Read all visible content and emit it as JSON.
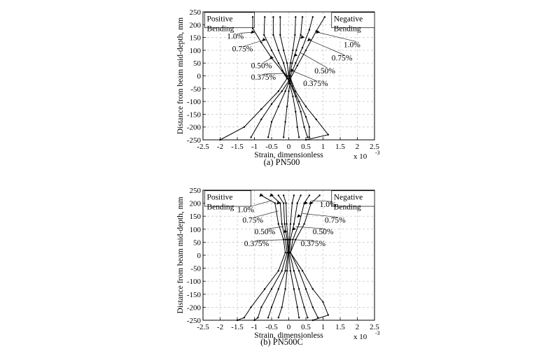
{
  "figure": {
    "captions": [
      "(a)  PN500",
      "(b)  PN500C"
    ]
  },
  "chart_data": [
    {
      "type": "line",
      "panel": "a",
      "caption": "(a)  PN500",
      "xlabel": "Strain, dimensionless",
      "ylabel": "Distance from beam mid-depth, mm",
      "x_multiplier": "x 10",
      "x_exponent": "-3",
      "xlim": [
        -2.5,
        2.5
      ],
      "ylim": [
        -250,
        250
      ],
      "xticks": [
        -2.5,
        -2,
        -1.5,
        -1,
        -0.5,
        0,
        0.5,
        1,
        1.5,
        2,
        2.5
      ],
      "xtick_labels": [
        "-2.5",
        "-2",
        "-1.5",
        "-1",
        "-0.5",
        "0",
        "0.5",
        "1",
        "1.5",
        "2",
        "2.5"
      ],
      "yticks": [
        -250,
        -200,
        -150,
        -100,
        -50,
        0,
        50,
        100,
        150,
        200,
        250
      ],
      "ytick_labels": [
        "-250",
        "-200",
        "-150",
        "-100",
        "-50",
        "0",
        "50",
        "100",
        "150",
        "200",
        "250"
      ],
      "grid": true,
      "legend_boxes": [
        {
          "lines": [
            "Positive",
            "Bending"
          ],
          "x": -2.45,
          "y": 248,
          "w": 1.45,
          "h": 60
        },
        {
          "lines": [
            "Negative",
            "Bending"
          ],
          "x": 1.25,
          "y": 248,
          "w": 1.25,
          "h": 60
        }
      ],
      "series": [
        {
          "label": "P-1.0%",
          "points": [
            [
              -1.05,
              230
            ],
            [
              -1.05,
              185
            ],
            [
              -0.8,
              130
            ],
            [
              -0.5,
              70
            ],
            [
              -0.2,
              20
            ],
            [
              -0.05,
              -10
            ],
            [
              -0.3,
              -60
            ],
            [
              -0.8,
              -130
            ],
            [
              -1.3,
              -200
            ],
            [
              -2.0,
              -250
            ]
          ]
        },
        {
          "label": "P-0.75%",
          "points": [
            [
              -0.7,
              230
            ],
            [
              -0.72,
              160
            ],
            [
              -0.5,
              100
            ],
            [
              -0.3,
              50
            ],
            [
              -0.1,
              5
            ],
            [
              0,
              -20
            ],
            [
              -0.2,
              -60
            ],
            [
              -0.5,
              -110
            ],
            [
              -0.8,
              -170
            ],
            [
              -1.1,
              -240
            ]
          ]
        },
        {
          "label": "P-0.50%",
          "points": [
            [
              -0.45,
              230
            ],
            [
              -0.45,
              160
            ],
            [
              -0.3,
              100
            ],
            [
              -0.15,
              50
            ],
            [
              -0.05,
              0
            ],
            [
              0.02,
              -20
            ],
            [
              -0.1,
              -60
            ],
            [
              -0.3,
              -120
            ],
            [
              -0.5,
              -180
            ],
            [
              -0.6,
              -240
            ]
          ]
        },
        {
          "label": "P-0.375%",
          "points": [
            [
              -0.25,
              230
            ],
            [
              -0.25,
              160
            ],
            [
              -0.15,
              100
            ],
            [
              -0.05,
              50
            ],
            [
              0,
              0
            ],
            [
              0.05,
              -20
            ],
            [
              0,
              -60
            ],
            [
              -0.05,
              -120
            ],
            [
              -0.1,
              -180
            ],
            [
              -0.15,
              -240
            ]
          ]
        },
        {
          "label": "N-0.375%",
          "points": [
            [
              0.2,
              230
            ],
            [
              0.18,
              160
            ],
            [
              0.12,
              100
            ],
            [
              0.05,
              50
            ],
            [
              0,
              0
            ],
            [
              0.02,
              -30
            ],
            [
              0.12,
              -80
            ],
            [
              0.2,
              -140
            ],
            [
              0.25,
              -200
            ],
            [
              0.3,
              -240
            ]
          ]
        },
        {
          "label": "N-0.50%",
          "points": [
            [
              0.4,
              230
            ],
            [
              0.35,
              160
            ],
            [
              0.22,
              100
            ],
            [
              0.1,
              50
            ],
            [
              0.02,
              0
            ],
            [
              0.05,
              -30
            ],
            [
              0.2,
              -80
            ],
            [
              0.35,
              -140
            ],
            [
              0.45,
              -200
            ],
            [
              0.55,
              -240
            ]
          ]
        },
        {
          "label": "N-0.75%",
          "points": [
            [
              0.7,
              230
            ],
            [
              0.6,
              180
            ],
            [
              0.4,
              110
            ],
            [
              0.2,
              50
            ],
            [
              0.05,
              0
            ],
            [
              0.1,
              -40
            ],
            [
              0.3,
              -100
            ],
            [
              0.5,
              -160
            ],
            [
              0.6,
              -200
            ],
            [
              0.6,
              -240
            ]
          ]
        },
        {
          "label": "N-1.0%",
          "points": [
            [
              1.05,
              230
            ],
            [
              0.8,
              175
            ],
            [
              0.5,
              100
            ],
            [
              0.25,
              40
            ],
            [
              0.05,
              -10
            ],
            [
              0.2,
              -60
            ],
            [
              0.5,
              -120
            ],
            [
              0.8,
              -170
            ],
            [
              1.15,
              -230
            ],
            [
              0.5,
              -250
            ]
          ]
        }
      ],
      "markers": [
        [
          -1.05,
          170
        ],
        [
          -0.72,
          140
        ],
        [
          -0.5,
          70
        ],
        [
          0.4,
          150
        ],
        [
          0.6,
          140
        ],
        [
          0.85,
          170
        ],
        [
          0.2,
          80
        ],
        [
          0.1,
          20
        ]
      ],
      "annotations": [
        {
          "text": "1.0%",
          "x": -1.8,
          "y": 145,
          "tx": -1.05,
          "ty": 170
        },
        {
          "text": "0.75%",
          "x": -1.65,
          "y": 95,
          "tx": -0.72,
          "ty": 140
        },
        {
          "text": "0.50%",
          "x": -1.1,
          "y": 30,
          "tx": -0.5,
          "ty": 70
        },
        {
          "text": "0.375%",
          "x": -1.1,
          "y": -15,
          "tx": -0.1,
          "ty": 10
        },
        {
          "text": "1.0%",
          "x": 1.6,
          "y": 112,
          "tx": 0.85,
          "ty": 170
        },
        {
          "text": "0.75%",
          "x": 1.25,
          "y": 60,
          "tx": 0.6,
          "ty": 140
        },
        {
          "text": "0.50%",
          "x": 0.75,
          "y": 10,
          "tx": 0.35,
          "ty": 90
        },
        {
          "text": "0.375%",
          "x": 0.42,
          "y": -40,
          "tx": 0.1,
          "ty": 20
        }
      ]
    },
    {
      "type": "line",
      "panel": "b",
      "caption": "(b)  PN500C",
      "xlabel": "Strain, dimensionless",
      "ylabel": "Distance from beam mid-depth, mm",
      "x_multiplier": "x 10",
      "x_exponent": "-3",
      "xlim": [
        -2.5,
        2.5
      ],
      "ylim": [
        -250,
        250
      ],
      "xticks": [
        -2.5,
        -2,
        -1.5,
        -1,
        -0.5,
        0,
        0.5,
        1,
        1.5,
        2,
        2.5
      ],
      "xtick_labels": [
        "-2.5",
        "-2",
        "-1.5",
        "-1",
        "-0.5",
        "0",
        "0.5",
        "1",
        "1.5",
        "2",
        "2.5"
      ],
      "yticks": [
        -250,
        -200,
        -150,
        -100,
        -50,
        0,
        50,
        100,
        150,
        200,
        250
      ],
      "ytick_labels": [
        "-250",
        "-200",
        "-150",
        "-100",
        "-50",
        "0",
        "50",
        "100",
        "150",
        "200",
        "250"
      ],
      "grid": true,
      "legend_boxes": [
        {
          "lines": [
            "Positive",
            "Bending"
          ],
          "x": -2.45,
          "y": 248,
          "w": 1.35,
          "h": 60
        },
        {
          "lines": [
            "Negative",
            "Bending"
          ],
          "x": 1.25,
          "y": 248,
          "w": 1.25,
          "h": 60
        }
      ],
      "series": [
        {
          "label": "P-1.0%",
          "points": [
            [
              -0.8,
              230
            ],
            [
              -0.4,
              200
            ],
            [
              -0.3,
              120
            ],
            [
              -0.15,
              60
            ],
            [
              -0.1,
              10
            ],
            [
              -0.3,
              -60
            ],
            [
              -0.7,
              -130
            ],
            [
              -1.1,
              -200
            ],
            [
              -1.3,
              -240
            ],
            [
              -1.5,
              -250
            ]
          ]
        },
        {
          "label": "P-0.75%",
          "points": [
            [
              -0.5,
              230
            ],
            [
              -0.25,
              200
            ],
            [
              -0.2,
              120
            ],
            [
              -0.1,
              60
            ],
            [
              -0.05,
              10
            ],
            [
              -0.2,
              -60
            ],
            [
              -0.5,
              -130
            ],
            [
              -0.8,
              -200
            ],
            [
              -0.9,
              -240
            ],
            [
              -1.0,
              -250
            ]
          ]
        },
        {
          "label": "P-0.50%",
          "points": [
            [
              -0.3,
              230
            ],
            [
              -0.15,
              200
            ],
            [
              -0.12,
              120
            ],
            [
              -0.05,
              60
            ],
            [
              -0.02,
              10
            ],
            [
              -0.1,
              -60
            ],
            [
              -0.3,
              -130
            ],
            [
              -0.5,
              -200
            ],
            [
              -0.6,
              -240
            ]
          ]
        },
        {
          "label": "P-0.375%",
          "points": [
            [
              -0.15,
              230
            ],
            [
              -0.08,
              200
            ],
            [
              -0.06,
              120
            ],
            [
              -0.02,
              60
            ],
            [
              0,
              10
            ],
            [
              -0.05,
              -60
            ],
            [
              -0.1,
              -130
            ],
            [
              -0.2,
              -200
            ],
            [
              -0.3,
              -240
            ]
          ]
        },
        {
          "label": "N-0.375%",
          "points": [
            [
              0.15,
              230
            ],
            [
              0.1,
              200
            ],
            [
              0.05,
              120
            ],
            [
              0.02,
              60
            ],
            [
              0,
              10
            ],
            [
              0.05,
              -60
            ],
            [
              0.15,
              -130
            ],
            [
              0.25,
              -200
            ],
            [
              0.3,
              -240
            ]
          ]
        },
        {
          "label": "N-0.50%",
          "points": [
            [
              0.35,
              230
            ],
            [
              0.25,
              200
            ],
            [
              0.15,
              120
            ],
            [
              0.05,
              60
            ],
            [
              0.02,
              10
            ],
            [
              0.15,
              -60
            ],
            [
              0.3,
              -130
            ],
            [
              0.45,
              -200
            ],
            [
              0.55,
              -240
            ]
          ]
        },
        {
          "label": "N-0.75%",
          "points": [
            [
              0.6,
              230
            ],
            [
              0.45,
              200
            ],
            [
              0.3,
              120
            ],
            [
              0.12,
              60
            ],
            [
              0.05,
              10
            ],
            [
              0.3,
              -60
            ],
            [
              0.5,
              -130
            ],
            [
              0.7,
              -200
            ],
            [
              0.85,
              -240
            ]
          ]
        },
        {
          "label": "N-1.0%",
          "points": [
            [
              0.9,
              230
            ],
            [
              0.65,
              200
            ],
            [
              0.45,
              120
            ],
            [
              0.2,
              60
            ],
            [
              0.05,
              10
            ],
            [
              0.4,
              -60
            ],
            [
              0.7,
              -130
            ],
            [
              1.0,
              -180
            ],
            [
              1.15,
              -230
            ],
            [
              0.7,
              -250
            ]
          ]
        }
      ],
      "markers": [
        [
          -0.8,
          230
        ],
        [
          -0.5,
          230
        ],
        [
          -0.3,
          200
        ],
        [
          0.5,
          200
        ],
        [
          0.65,
          200
        ],
        [
          0.3,
          150
        ],
        [
          0.15,
          100
        ],
        [
          -0.1,
          90
        ]
      ],
      "annotations": [
        {
          "text": "1.0%",
          "x": -1.5,
          "y": 165,
          "tx": -0.5,
          "ty": 210
        },
        {
          "text": "0.75%",
          "x": -1.35,
          "y": 125,
          "tx": -0.3,
          "ty": 170
        },
        {
          "text": "0.50%",
          "x": -1.0,
          "y": 80,
          "tx": -0.15,
          "ty": 110
        },
        {
          "text": "0.375%",
          "x": -1.3,
          "y": 35,
          "tx": -0.05,
          "ty": 60
        },
        {
          "text": "1.0%",
          "x": 0.9,
          "y": 185,
          "tx": 0.65,
          "ty": 210
        },
        {
          "text": "0.75%",
          "x": 1.05,
          "y": 125,
          "tx": 0.4,
          "ty": 160
        },
        {
          "text": "0.50%",
          "x": 0.7,
          "y": 80,
          "tx": 0.2,
          "ty": 110
        },
        {
          "text": "0.375%",
          "x": 0.35,
          "y": 35,
          "tx": 0.05,
          "ty": 60
        }
      ]
    }
  ]
}
